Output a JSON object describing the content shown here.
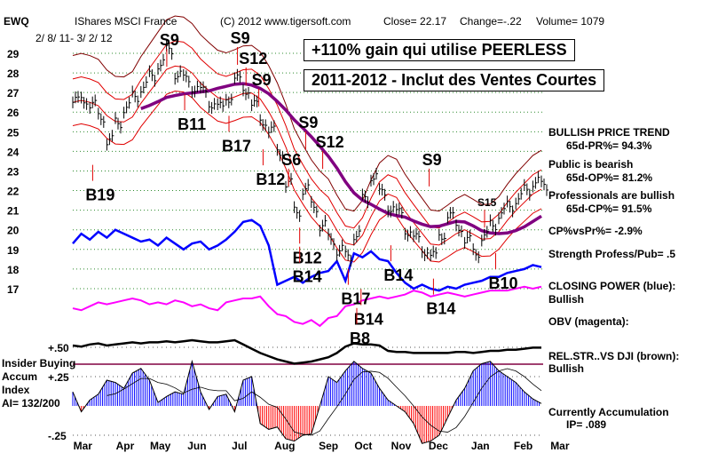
{
  "header": {
    "ticker": "EWQ",
    "name": "IShares MSCI France",
    "copyright": "(C) 2012 www.tigersoft.com",
    "close": "Close=  22.17",
    "change": "Change=-.22",
    "volume": "Volume= 1079",
    "date_range": "2/ 8/ 11- 3/ 2/ 12"
  },
  "banners": {
    "gain": "+110% gain qui utilise PEERLESS",
    "period": "2011-2012 - Inclut des Ventes Courtes"
  },
  "right_panel": {
    "trend": "BULLISH PRICE TREND",
    "pr": "65d-PR%= 94.3%",
    "public": "Public is bearish",
    "op": "65d-OP%= 81.2%",
    "pros": "Professionals are bullish",
    "cp": "65d-CP%= 91.5%",
    "cpvspr": "CP%vsPr%= -2.9%",
    "strength": "Strength Profess/Pub= .5",
    "closing_power": "CLOSING POWER (blue):",
    "closing_power_state": "Bullish",
    "obv": "OBV (magenta):",
    "relstr": "REL.STR..VS DJI (brown):",
    "relstr_state": "Bullish",
    "accum": "Currently Accumulation",
    "ip": "IP=  .089"
  },
  "left_panel": {
    "insider": "Insider Buying",
    "accum": "Accum",
    "index": "Index",
    "ai": "AI= 132/200"
  },
  "colors": {
    "grid": "#2e8b2e",
    "band": "#e00000",
    "ma": "#800080",
    "cp": "#0000ff",
    "obv": "#ff00ff",
    "accum_pos": "#0000ff",
    "accum_neg": "#ff0000"
  },
  "chart_data": {
    "type": "line",
    "title": "IShares MSCI France (EWQ) weekly",
    "price_ticks": [
      29,
      28,
      27,
      26,
      25,
      24,
      23,
      22,
      21,
      20,
      19,
      18,
      17
    ],
    "ylim": [
      16.6,
      29.4
    ],
    "x_labels": [
      "Mar",
      "Apr",
      "May",
      "Jun",
      "Jul",
      "Aug",
      "Sep",
      "Oct",
      "Nov",
      "Dec",
      "Jan",
      "Feb",
      "Mar"
    ],
    "x_label_weeks": [
      1,
      6,
      10,
      14.4,
      19.6,
      24.6,
      29.8,
      34,
      38.3,
      42.7,
      47.7,
      52.7,
      57
    ],
    "closes": [
      26.5,
      26.7,
      26.3,
      25.8,
      24.5,
      25.5,
      26.2,
      26.8,
      27.3,
      27.8,
      28.5,
      29.1,
      28.0,
      27.6,
      27.3,
      27.0,
      26.5,
      26.2,
      26.8,
      27.6,
      27.2,
      26.3,
      25.6,
      25.0,
      24.0,
      22.3,
      21.0,
      22.0,
      21.2,
      20.2,
      19.5,
      19.0,
      18.6,
      19.8,
      21.5,
      22.8,
      21.8,
      21.2,
      20.8,
      20.0,
      19.5,
      19.0,
      18.6,
      19.8,
      20.6,
      20.2,
      19.4,
      18.9,
      19.6,
      20.3,
      20.8,
      21.2,
      21.6,
      22.0,
      22.5,
      22.17
    ],
    "closing_power": [
      19.3,
      19.8,
      19.5,
      19.9,
      19.6,
      20.0,
      19.8,
      19.6,
      19.4,
      19.5,
      19.2,
      19.6,
      19.3,
      19.0,
      19.3,
      19.4,
      19.0,
      19.2,
      19.5,
      19.9,
      20.4,
      20.5,
      20.2,
      19.2,
      17.2,
      17.4,
      17.6,
      17.3,
      17.6,
      17.8,
      17.9,
      18.4,
      17.4,
      18.8,
      18.6,
      18.9,
      18.5,
      18.4,
      17.8,
      17.3,
      17.0,
      17.2,
      17.0,
      16.9,
      17.1,
      17.0,
      17.2,
      17.3,
      17.4,
      17.6,
      17.6,
      17.8,
      17.9,
      18.0,
      18.2,
      18.1
    ],
    "obv": [
      16.0,
      15.9,
      16.1,
      16.3,
      16.2,
      16.3,
      16.4,
      16.5,
      16.4,
      16.2,
      16.3,
      16.2,
      16.4,
      16.3,
      16.1,
      16.2,
      16.0,
      15.9,
      16.3,
      16.4,
      16.5,
      16.5,
      16.6,
      16.1,
      15.7,
      15.6,
      15.3,
      15.2,
      15.4,
      15.1,
      15.5,
      15.6,
      16.1,
      16.2,
      16.4,
      16.5,
      16.6,
      16.5,
      16.6,
      16.7,
      16.9,
      16.8,
      16.6,
      16.7,
      16.8,
      16.7,
      16.6,
      16.7,
      16.8,
      16.9,
      16.9,
      16.9,
      17.0,
      17.1,
      17.0,
      17.1
    ],
    "rel_strength": [
      0.55,
      0.54,
      0.56,
      0.57,
      0.55,
      0.56,
      0.57,
      0.58,
      0.57,
      0.58,
      0.58,
      0.59,
      0.58,
      0.59,
      0.6,
      0.59,
      0.58,
      0.58,
      0.59,
      0.6,
      0.56,
      0.52,
      0.48,
      0.45,
      0.42,
      0.4,
      0.38,
      0.39,
      0.4,
      0.42,
      0.44,
      0.48,
      0.54,
      0.57,
      0.56,
      0.56,
      0.55,
      0.5,
      0.49,
      0.49,
      0.48,
      0.48,
      0.48,
      0.48,
      0.48,
      0.49,
      0.49,
      0.48,
      0.49,
      0.5,
      0.5,
      0.51,
      0.51,
      0.52,
      0.53,
      0.53
    ],
    "accum": [
      0.12,
      -0.05,
      0.05,
      0.1,
      0.22,
      0.2,
      0.15,
      0.28,
      0.32,
      0.22,
      0.03,
      0.08,
      0.12,
      0.1,
      0.38,
      0.12,
      -0.03,
      0.08,
      0.1,
      -0.05,
      0.22,
      0.25,
      -0.15,
      -0.2,
      -0.18,
      -0.28,
      -0.3,
      -0.25,
      -0.24,
      0.0,
      0.25,
      0.2,
      0.3,
      0.38,
      0.32,
      0.28,
      0.15,
      0.05,
      0.0,
      -0.05,
      -0.15,
      -0.32,
      -0.3,
      -0.25,
      -0.1,
      0.05,
      0.15,
      0.3,
      0.36,
      0.38,
      0.3,
      0.25,
      0.2,
      0.12,
      0.06,
      0.02
    ],
    "accum_ticks": [
      {
        "label": "+.50",
        "value": 0.5
      },
      {
        "label": "+.25",
        "value": 0.25
      },
      {
        "label": "-.25",
        "value": -0.25
      }
    ],
    "signals": [
      {
        "label": "S9",
        "week": 10.2,
        "price": 29.4,
        "type": "sell",
        "big": true
      },
      {
        "label": "S9",
        "week": 18.5,
        "price": 29.5,
        "type": "sell",
        "big": true
      },
      {
        "label": "S12",
        "week": 19.5,
        "price": 29.0,
        "type": "sell",
        "big": true
      },
      {
        "label": "S9",
        "week": 21,
        "price": 28.6,
        "type": "sell",
        "big": true
      },
      {
        "label": "S9",
        "week": 26.5,
        "price": 25.2,
        "type": "sell",
        "big": true
      },
      {
        "label": "S12",
        "week": 28.5,
        "price": 24.6,
        "type": "sell",
        "big": true
      },
      {
        "label": "S6",
        "week": 24.5,
        "price": 23.3,
        "type": "sell",
        "big": true
      },
      {
        "label": "S9",
        "week": 41,
        "price": 23.3,
        "type": "sell",
        "big": true
      },
      {
        "label": "S15",
        "week": 47.5,
        "price": 21.2,
        "type": "sell",
        "big": false
      },
      {
        "label": "B19",
        "week": 1.5,
        "price": 21.5,
        "type": "buy",
        "big": true
      },
      {
        "label": "B11",
        "week": 12.3,
        "price": 25.1,
        "type": "buy",
        "big": true
      },
      {
        "label": "B17",
        "week": 17.5,
        "price": 24.0,
        "type": "buy",
        "big": true
      },
      {
        "label": "B12",
        "week": 21.5,
        "price": 22.7,
        "type": "buy",
        "big": true
      },
      {
        "label": "B12",
        "week": 25.8,
        "price": 18.3,
        "type": "buy",
        "big": true
      },
      {
        "label": "B14",
        "week": 25.8,
        "price": 17.6,
        "type": "buy",
        "big": true
      },
      {
        "label": "B17",
        "week": 31.5,
        "price": 16.2,
        "type": "buy",
        "big": true
      },
      {
        "label": "B14",
        "week": 36.5,
        "price": 17.4,
        "type": "buy",
        "big": true
      },
      {
        "label": "B14",
        "week": 33,
        "price": 15.3,
        "type": "buy",
        "big": true
      },
      {
        "label": "B14",
        "week": 41.5,
        "price": 15.7,
        "type": "buy",
        "big": true
      },
      {
        "label": "B10",
        "week": 48.8,
        "price": 17.0,
        "type": "buy",
        "big": true
      },
      {
        "label": "B8",
        "week": 32.5,
        "price": 14.2,
        "type": "buy",
        "big": true
      }
    ]
  }
}
